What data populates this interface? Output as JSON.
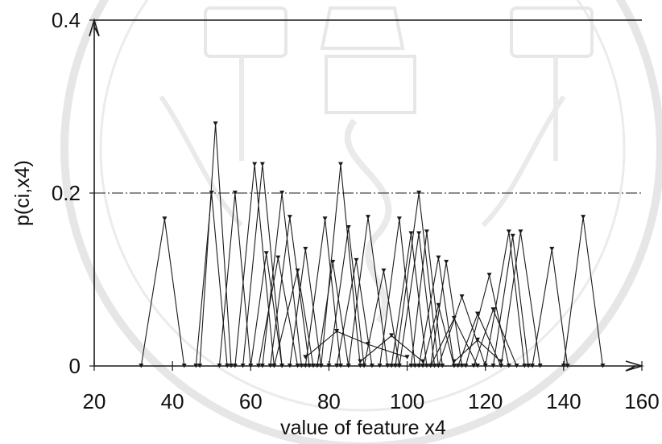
{
  "chart_data": {
    "type": "line",
    "title": "",
    "xlabel": "value of feature x4",
    "ylabel": "p(ci,x4)",
    "xlim": [
      20,
      160
    ],
    "ylim": [
      0,
      0.4
    ],
    "x_ticks": [
      "20",
      "40",
      "60",
      "80",
      "100",
      "120",
      "140",
      "160"
    ],
    "y_ticks": [
      "0",
      "0.2",
      "0.4"
    ],
    "grid": "horizontal at y=0.2 and y=0.4",
    "legend": "none",
    "colors": {
      "lines": "#1a1a1a",
      "background": "#ffffff",
      "watermark": "#cfcfcf"
    },
    "series": [
      {
        "points": [
          [
            32,
            0
          ],
          [
            38,
            0.17
          ],
          [
            43,
            0
          ]
        ]
      },
      {
        "points": [
          [
            47,
            0
          ],
          [
            51,
            0.28
          ],
          [
            55,
            0
          ]
        ]
      },
      {
        "points": [
          [
            46,
            0
          ],
          [
            50,
            0.2
          ],
          [
            54,
            0
          ]
        ]
      },
      {
        "points": [
          [
            52,
            0
          ],
          [
            56,
            0.2
          ],
          [
            60,
            0
          ]
        ]
      },
      {
        "points": [
          [
            56,
            0
          ],
          [
            61,
            0.233
          ],
          [
            66,
            0
          ]
        ]
      },
      {
        "points": [
          [
            58,
            0
          ],
          [
            63,
            0.233
          ],
          [
            68,
            0
          ]
        ]
      },
      {
        "points": [
          [
            63,
            0
          ],
          [
            68,
            0.2
          ],
          [
            73,
            0
          ]
        ]
      },
      {
        "points": [
          [
            65,
            0
          ],
          [
            70,
            0.172
          ],
          [
            75,
            0
          ]
        ]
      },
      {
        "points": [
          [
            70,
            0
          ],
          [
            74,
            0.135
          ],
          [
            78,
            0
          ]
        ]
      },
      {
        "points": [
          [
            60,
            0
          ],
          [
            64,
            0.13
          ],
          [
            68,
            0
          ]
        ]
      },
      {
        "points": [
          [
            62,
            0
          ],
          [
            67,
            0.125
          ],
          [
            72,
            0
          ]
        ]
      },
      {
        "points": [
          [
            66,
            0
          ],
          [
            72,
            0.11
          ],
          [
            76,
            0
          ]
        ]
      },
      {
        "points": [
          [
            74,
            0
          ],
          [
            79,
            0.17
          ],
          [
            83,
            0
          ]
        ]
      },
      {
        "points": [
          [
            78,
            0
          ],
          [
            83,
            0.233
          ],
          [
            88,
            0
          ]
        ]
      },
      {
        "points": [
          [
            80,
            0
          ],
          [
            85,
            0.16
          ],
          [
            89,
            0
          ]
        ]
      },
      {
        "points": [
          [
            77,
            0
          ],
          [
            81,
            0.12
          ],
          [
            85,
            0
          ]
        ]
      },
      {
        "points": [
          [
            82,
            0
          ],
          [
            87,
            0.122
          ],
          [
            91,
            0
          ]
        ]
      },
      {
        "points": [
          [
            85,
            0
          ],
          [
            90,
            0.172
          ],
          [
            95,
            0
          ]
        ]
      },
      {
        "points": [
          [
            89,
            0
          ],
          [
            94,
            0.11
          ],
          [
            98,
            0
          ]
        ]
      },
      {
        "points": [
          [
            93,
            0
          ],
          [
            98,
            0.17
          ],
          [
            102,
            0
          ]
        ]
      },
      {
        "points": [
          [
            96,
            0
          ],
          [
            101,
            0.153
          ],
          [
            105,
            0
          ]
        ]
      },
      {
        "points": [
          [
            97,
            0
          ],
          [
            103,
            0.2
          ],
          [
            108,
            0
          ]
        ]
      },
      {
        "points": [
          [
            98,
            0
          ],
          [
            103,
            0.153
          ],
          [
            107,
            0
          ]
        ]
      },
      {
        "points": [
          [
            101,
            0
          ],
          [
            105,
            0.155
          ],
          [
            109,
            0
          ]
        ]
      },
      {
        "points": [
          [
            103,
            0
          ],
          [
            108,
            0.125
          ],
          [
            112,
            0
          ]
        ]
      },
      {
        "points": [
          [
            106,
            0
          ],
          [
            110,
            0.12
          ],
          [
            114,
            0
          ]
        ]
      },
      {
        "points": [
          [
            104,
            0
          ],
          [
            108,
            0.07
          ],
          [
            112,
            0
          ]
        ]
      },
      {
        "points": [
          [
            106,
            0
          ],
          [
            112,
            0.055
          ],
          [
            118,
            0
          ]
        ]
      },
      {
        "points": [
          [
            108,
            0
          ],
          [
            114,
            0.08
          ],
          [
            120,
            0
          ]
        ]
      },
      {
        "points": [
          [
            113,
            0
          ],
          [
            118,
            0.06
          ],
          [
            124,
            0
          ]
        ]
      },
      {
        "points": [
          [
            115,
            0
          ],
          [
            121,
            0.105
          ],
          [
            126,
            0
          ]
        ]
      },
      {
        "points": [
          [
            117,
            0
          ],
          [
            122,
            0.065
          ],
          [
            128,
            0
          ]
        ]
      },
      {
        "points": [
          [
            120,
            0
          ],
          [
            126,
            0.155
          ],
          [
            130,
            0
          ]
        ]
      },
      {
        "points": [
          [
            122,
            0
          ],
          [
            127,
            0.15
          ],
          [
            131,
            0
          ]
        ]
      },
      {
        "points": [
          [
            124,
            0
          ],
          [
            129,
            0.155
          ],
          [
            134,
            0
          ]
        ]
      },
      {
        "points": [
          [
            132,
            0
          ],
          [
            137,
            0.135
          ],
          [
            141,
            0
          ]
        ]
      },
      {
        "points": [
          [
            140,
            0
          ],
          [
            145,
            0.172
          ],
          [
            150,
            0
          ]
        ]
      },
      {
        "points": [
          [
            74,
            0.01
          ],
          [
            82,
            0.04
          ],
          [
            90,
            0.025
          ],
          [
            100,
            0.01
          ]
        ]
      },
      {
        "points": [
          [
            88,
            0.005
          ],
          [
            96,
            0.035
          ],
          [
            104,
            0.005
          ]
        ]
      },
      {
        "points": [
          [
            112,
            0.005
          ],
          [
            118,
            0.03
          ],
          [
            124,
            0.005
          ]
        ]
      }
    ]
  }
}
